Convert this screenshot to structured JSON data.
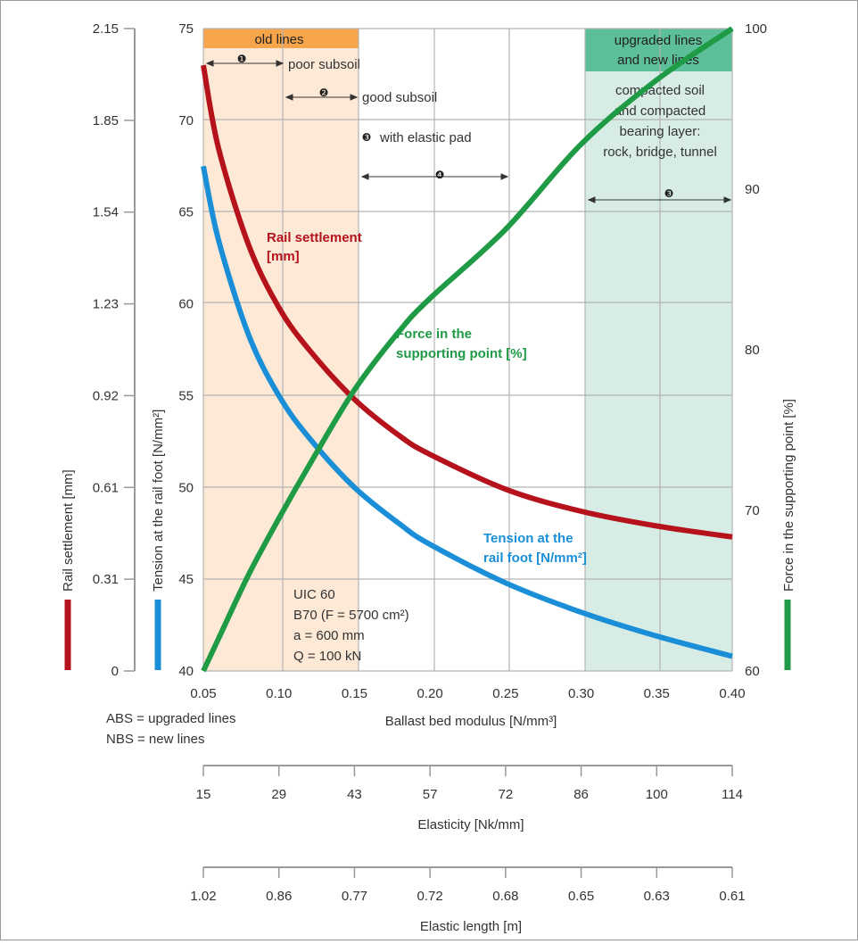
{
  "chart_data": {
    "type": "line",
    "x": [
      0.05,
      0.06,
      0.08,
      0.1,
      0.12,
      0.15,
      0.18,
      0.2,
      0.25,
      0.3,
      0.35,
      0.4
    ],
    "x_ticks": [
      "0.05",
      "0.10",
      "0.15",
      "0.20",
      "0.25",
      "0.30",
      "0.35",
      "0.40"
    ],
    "xlabel": "Ballast bed modulus [N/mm³]",
    "xlim": [
      0.05,
      0.4
    ],
    "axes": {
      "settlement": {
        "label": "Rail settlement [mm]",
        "color": "#b5121b",
        "ticks": [
          "2.15",
          "1.85",
          "1.54",
          "1.23",
          "0.92",
          "0.61",
          "0.31",
          "0"
        ]
      },
      "tension": {
        "label": "Tension at the rail foot [N/mm²]",
        "color": "#1a8fd8",
        "ticks": [
          "75",
          "70",
          "65",
          "60",
          "55",
          "50",
          "45",
          "40"
        ],
        "ylim": [
          40,
          75
        ]
      },
      "force": {
        "label": "Force in the supporting point [%]",
        "color": "#1f9a45",
        "ticks": [
          "100",
          "90",
          "80",
          "70",
          "60"
        ],
        "ylim": [
          60,
          100
        ]
      }
    },
    "series": [
      {
        "name": "Rail settlement [mm]",
        "axis": "tension",
        "color": "#b5121b",
        "values": [
          73,
          68.5,
          63.2,
          59.8,
          57.5,
          54.8,
          52.8,
          51.8,
          49.9,
          48.7,
          47.9,
          47.3
        ]
      },
      {
        "name": "Tension at the rail foot [N/mm²]",
        "axis": "tension",
        "color": "#1a8fd8",
        "values": [
          67.5,
          63.5,
          58.3,
          55.0,
          52.7,
          50.0,
          48.0,
          46.9,
          44.8,
          43.2,
          41.9,
          40.8
        ]
      },
      {
        "name": "Force in the supporting point [%]",
        "axis": "force",
        "color": "#1f9a45",
        "values": [
          60,
          62,
          66,
          69.5,
          72.8,
          77.5,
          81.2,
          83.2,
          87.5,
          92.8,
          96.8,
          100
        ]
      }
    ],
    "lower_axes": [
      {
        "label": "Elasticity [Nk/mm]",
        "ticks": [
          "15",
          "29",
          "43",
          "57",
          "72",
          "86",
          "100",
          "114"
        ]
      },
      {
        "label": "Elastic length [m]",
        "ticks": [
          "1.02",
          "0.86",
          "0.77",
          "0.72",
          "0.68",
          "0.65",
          "0.63",
          "0.61"
        ]
      }
    ],
    "regions": {
      "old": {
        "label": "old lines",
        "color": "#f6a54b",
        "fill": "#fde9d6",
        "x_range": [
          0.05,
          0.15
        ]
      },
      "new": {
        "label_line1": "upgraded lines",
        "label_line2": "and new lines",
        "color": "#5cbf9a",
        "fill": "#d6ece5",
        "x_range": [
          0.3,
          0.4
        ]
      }
    },
    "annotations": {
      "n1": "❶",
      "poor_subsoil": "poor subsoil",
      "n2": "❷",
      "good_subsoil": "good subsoil",
      "n3": "❸",
      "with_elastic_pad": "with elastic pad",
      "n4": "❹",
      "compacted_lines": [
        "compacted soil",
        "and compacted",
        "bearing layer:",
        "rock, bridge, tunnel"
      ],
      "n3b": "❸",
      "rail_settlement_lines": [
        "Rail settlement",
        "[mm]"
      ],
      "force_lines": [
        "Force in the",
        "supporting point [%]"
      ],
      "tension_lines": [
        "Tension at the",
        "rail foot [N/mm²]"
      ],
      "params_lines": [
        "UIC 60",
        "B70 (F = 5700 cm²)",
        "a = 600 mm",
        "Q = 100 kN"
      ],
      "abs_note": "ABS = upgraded lines",
      "nbs_note": "NBS = new lines"
    }
  }
}
